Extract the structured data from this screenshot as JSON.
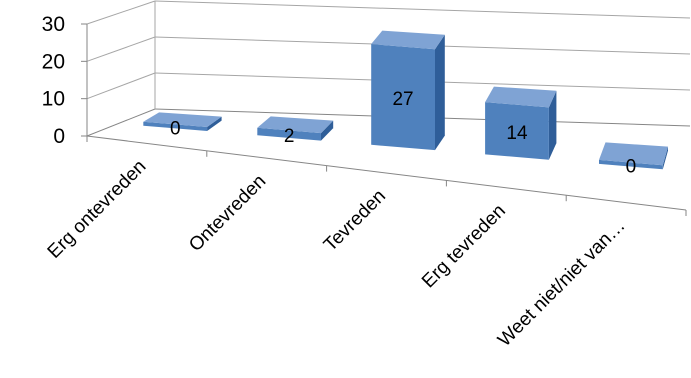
{
  "chart_data": {
    "type": "bar",
    "style": "3d-column",
    "categories": [
      "Erg ontevreden",
      "Ontevreden",
      "Tevreden",
      "Erg tevreden",
      "Weet niet/niet van…"
    ],
    "values": [
      0,
      2,
      27,
      14,
      0
    ],
    "data_labels": [
      "0",
      "2",
      "27",
      "14",
      "0"
    ],
    "y_ticks": [
      "0",
      "10",
      "20",
      "30"
    ],
    "ylim": [
      0,
      30
    ],
    "grid": true,
    "legend": "none",
    "colors": {
      "front": "#4f81bd",
      "top": "#7fa3d4",
      "side": "#2f5e99"
    }
  }
}
